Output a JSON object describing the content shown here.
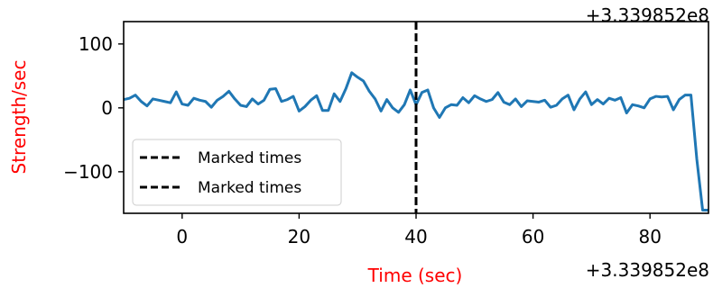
{
  "chart_data": {
    "type": "line",
    "xlabel": "Time (sec)",
    "ylabel": "Strength/sec",
    "label_color": "#ff0000",
    "x_offset_label": "+3.339852e8",
    "xlim": [
      -10,
      90
    ],
    "ylim": [
      -165,
      135
    ],
    "xticks": [
      0,
      20,
      40,
      60,
      80
    ],
    "yticks": [
      100,
      0,
      -100
    ],
    "ytick_labels": [
      "100",
      "0",
      "−100"
    ],
    "grid": false,
    "legend": {
      "placement": "lower-left",
      "entries": [
        "Marked times",
        "Marked times"
      ]
    },
    "vlines": [
      40
    ],
    "series": [
      {
        "color": "#1f77b4",
        "x": [
          -10,
          -9,
          -8,
          -7,
          -6,
          -5,
          -4,
          -3,
          -2,
          -1,
          0,
          1,
          2,
          3,
          4,
          5,
          6,
          7,
          8,
          9,
          10,
          11,
          12,
          13,
          14,
          15,
          16,
          17,
          18,
          19,
          20,
          21,
          22,
          23,
          24,
          25,
          26,
          27,
          28,
          29,
          30,
          31,
          32,
          33,
          34,
          35,
          36,
          37,
          38,
          39,
          40,
          41,
          42,
          43,
          44,
          45,
          46,
          47,
          48,
          49,
          50,
          51,
          52,
          53,
          54,
          55,
          56,
          57,
          58,
          59,
          60,
          61,
          62,
          63,
          64,
          65,
          66,
          67,
          68,
          69,
          70,
          71,
          72,
          73,
          74,
          75,
          76,
          77,
          78,
          79,
          80,
          81,
          82,
          83,
          84,
          85,
          86,
          87,
          88,
          89,
          90
        ],
        "y": [
          13,
          15,
          20,
          10,
          3,
          14,
          12,
          10,
          8,
          25,
          6,
          4,
          15,
          12,
          10,
          1,
          12,
          18,
          26,
          14,
          4,
          2,
          14,
          6,
          12,
          29,
          30,
          10,
          13,
          18,
          -5,
          2,
          12,
          19,
          -4,
          -4,
          22,
          10,
          30,
          55,
          48,
          42,
          26,
          14,
          -5,
          13,
          0,
          -7,
          5,
          28,
          5,
          24,
          28,
          0,
          -15,
          0,
          5,
          4,
          16,
          8,
          19,
          14,
          10,
          13,
          24,
          9,
          5,
          14,
          2,
          11,
          10,
          9,
          12,
          1,
          4,
          14,
          20,
          -3,
          14,
          25,
          5,
          13,
          6,
          15,
          12,
          16,
          -8,
          5,
          3,
          0,
          14,
          18,
          17,
          18,
          -3,
          13,
          20,
          20,
          -80,
          -160,
          -160
        ]
      }
    ]
  }
}
